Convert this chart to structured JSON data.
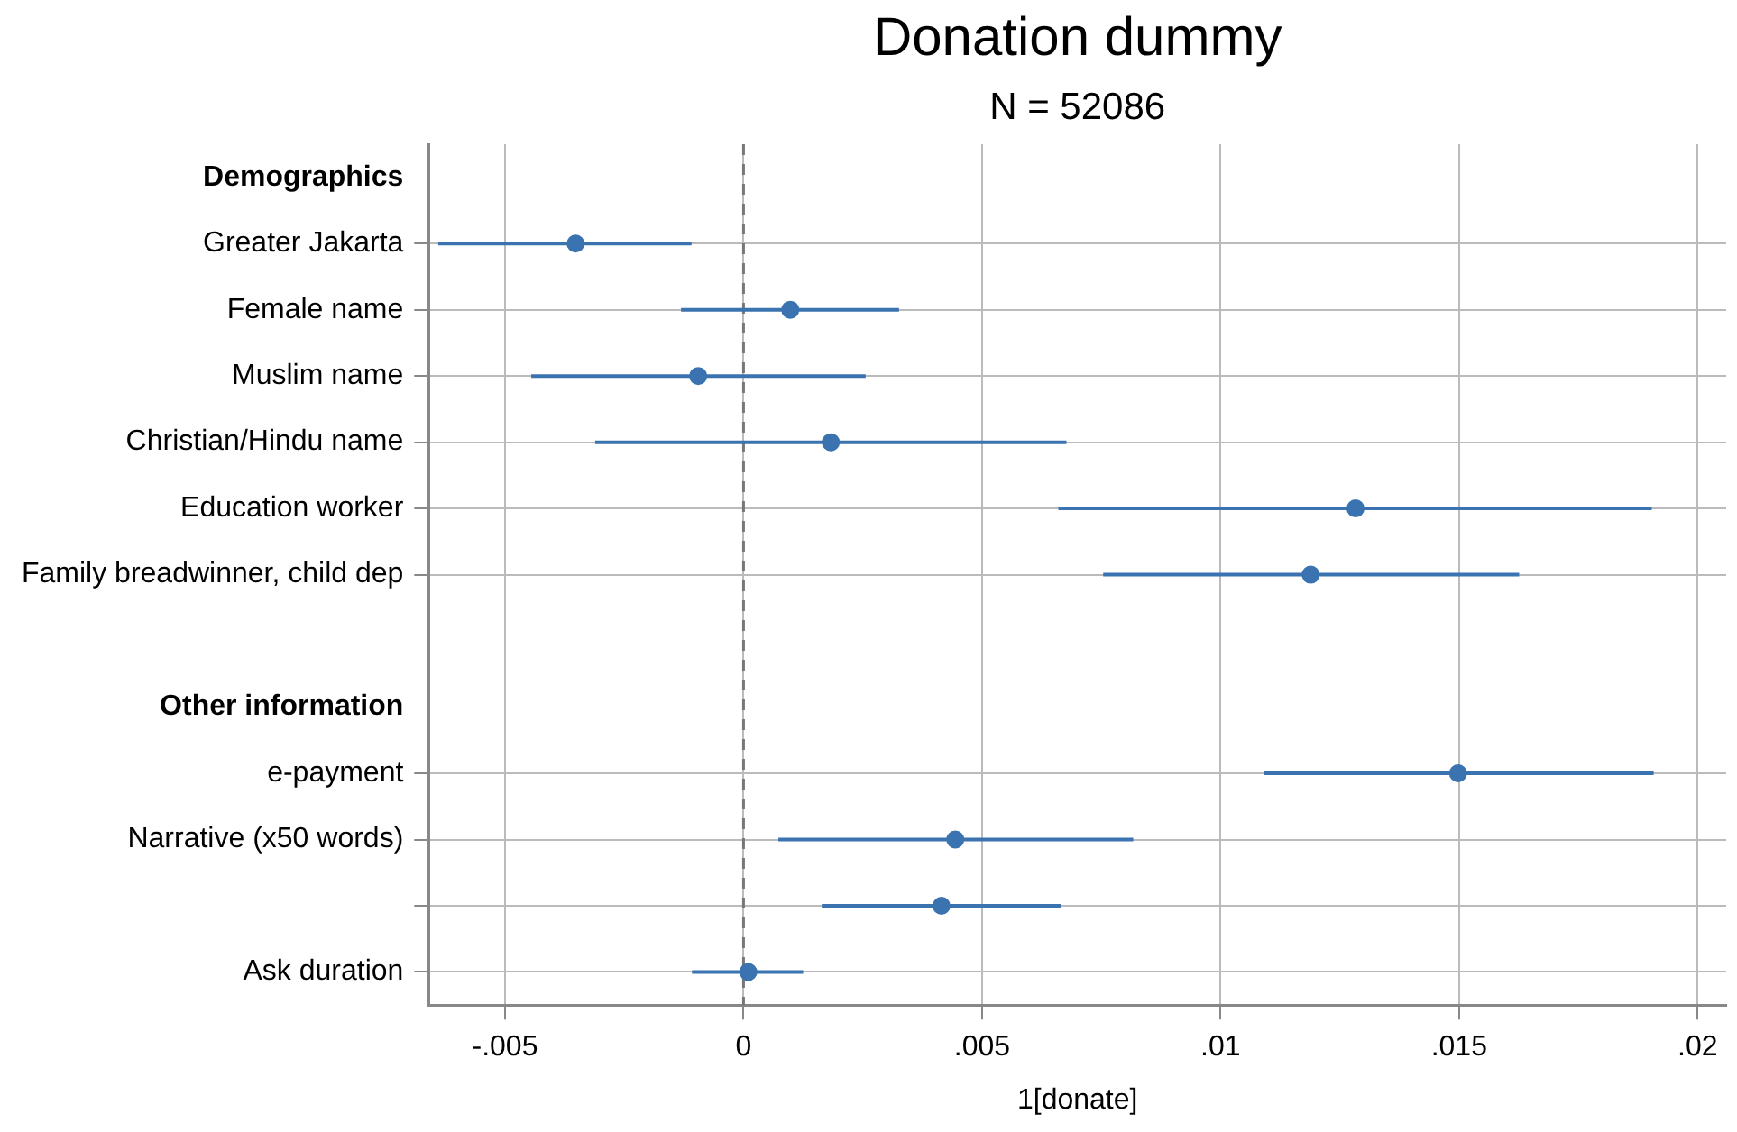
{
  "chart_data": {
    "type": "scatter",
    "orientation": "horizontal",
    "title": "Donation dummy",
    "subtitle": "N = 52086",
    "xlabel": "1[donate]",
    "categories": [
      "Demographics",
      "Greater Jakarta",
      "Female name",
      "Muslim name",
      "Christian/Hindu name",
      "Education worker",
      "Family breadwinner, child dep",
      null,
      "Other information",
      "e-payment",
      "Narrative (x50 words)",
      null,
      "Ask duration"
    ],
    "series": [
      {
        "color": "#3a73b0",
        "values": [
          null,
          -0.00352,
          0.00098,
          -0.00095,
          0.00183,
          0.01283,
          0.01189,
          null,
          null,
          0.01498,
          0.00444,
          0.00415,
          0.0001
        ],
        "errors": [
          null,
          [
            -0.0064,
            -0.00109
          ],
          [
            -0.00131,
            0.00326
          ],
          [
            -0.00445,
            0.00256
          ],
          [
            -0.00311,
            0.00677
          ],
          [
            0.0066,
            0.01904
          ],
          [
            0.00754,
            0.01626
          ],
          null,
          null,
          [
            0.01091,
            0.01908
          ],
          [
            0.00073,
            0.00817
          ],
          [
            0.00164,
            0.00665
          ],
          [
            -0.00108,
            0.00125
          ]
        ]
      }
    ],
    "xlim": [
      -0.0066,
      0.0206
    ],
    "xticks": [
      {
        "value": -0.005,
        "label": "-.005"
      },
      0,
      {
        "value": 0.005,
        "label": ".005"
      },
      {
        "value": 0.01,
        "label": ".01"
      },
      {
        "value": 0.015,
        "label": ".015"
      },
      {
        "value": 0.02,
        "label": ".02"
      }
    ],
    "ref_lines": [
      {
        "axis": "x",
        "value": 0,
        "label": null,
        "color": "#777777",
        "line_style": "dashed"
      }
    ],
    "grid": true,
    "marker": "circle"
  }
}
